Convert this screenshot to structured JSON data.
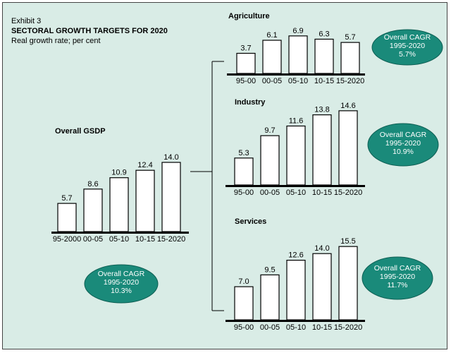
{
  "header": {
    "exhibit": "Exhibit 3",
    "title": "SECTORAL GROWTH TARGETS FOR 2020",
    "subtitle": "Real growth rate; per cent"
  },
  "colors": {
    "background": "#d9ece6",
    "bar_fill": "#ffffff",
    "bar_stroke": "#000000",
    "oval_fill": "#1a8a7a",
    "oval_text": "#ffffff"
  },
  "chart_data": [
    {
      "type": "bar",
      "title": "Overall GSDP",
      "categories": [
        "95-2000",
        "00-05",
        "05-10",
        "10-15",
        "15-2020"
      ],
      "values": [
        5.7,
        8.6,
        10.9,
        12.4,
        14.0
      ],
      "value_labels": [
        "5.7",
        "8.6",
        "10.9",
        "12.4",
        "14.0"
      ],
      "cagr": {
        "label": "Overall CAGR",
        "period": "1995-2020",
        "value": "10.3%"
      }
    },
    {
      "type": "bar",
      "title": "Agriculture",
      "categories": [
        "95-00",
        "00-05",
        "05-10",
        "10-15",
        "15-2020"
      ],
      "values": [
        3.7,
        6.1,
        6.9,
        6.3,
        5.7
      ],
      "value_labels": [
        "3.7",
        "6.1",
        "6.9",
        "6.3",
        "5.7"
      ],
      "cagr": {
        "label": "Overall CAGR",
        "period": "1995-2020",
        "value": "5.7%"
      }
    },
    {
      "type": "bar",
      "title": "Industry",
      "categories": [
        "95-00",
        "00-05",
        "05-10",
        "10-15",
        "15-2020"
      ],
      "values": [
        5.3,
        9.7,
        11.6,
        13.8,
        14.6
      ],
      "value_labels": [
        "5.3",
        "9.7",
        "11.6",
        "13.8",
        "14.6"
      ],
      "cagr": {
        "label": "Overall CAGR",
        "period": "1995-2020",
        "value": "10.9%"
      }
    },
    {
      "type": "bar",
      "title": "Services",
      "categories": [
        "95-00",
        "00-05",
        "05-10",
        "10-15",
        "15-2020"
      ],
      "values": [
        7.0,
        9.5,
        12.6,
        14.0,
        15.5
      ],
      "value_labels": [
        "7.0",
        "9.5",
        "12.6",
        "14.0",
        "15.5"
      ],
      "cagr": {
        "label": "Overall CAGR",
        "period": "1995-2020",
        "value": "11.7%"
      }
    }
  ]
}
